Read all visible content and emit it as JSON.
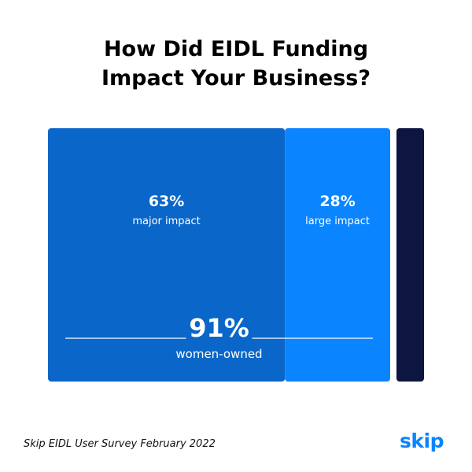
{
  "header": {
    "title_line1": "How Did EIDL Funding",
    "title_line2": "Impact Your Business?"
  },
  "chart_data": {
    "type": "bar",
    "orientation": "horizontal-stacked",
    "title": "How Did EIDL Funding Impact Your Business?",
    "segments": [
      {
        "label": "major impact",
        "value": 63,
        "display": "63%",
        "color": "#0a66c8"
      },
      {
        "label": "large impact",
        "value": 28,
        "display": "28%",
        "color": "#0a84ff"
      },
      {
        "label": "",
        "value": 9,
        "display": "",
        "color": "#0c1640"
      }
    ],
    "total": {
      "value": 91,
      "display": "91%",
      "label": "women-owned"
    },
    "xlim": [
      0,
      100
    ]
  },
  "footer": {
    "source": "Skip EIDL User Survey February 2022",
    "brand": "skip",
    "brand_color": "#0a84ff"
  }
}
